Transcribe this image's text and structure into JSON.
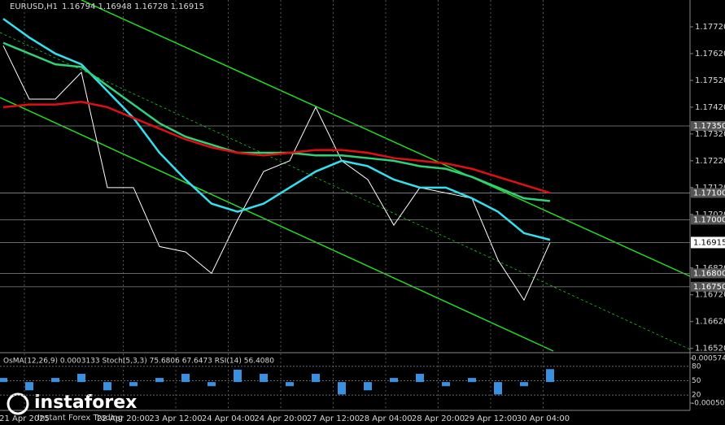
{
  "chart_data": {
    "type": "line",
    "title": "EURUSD,H1",
    "subtitle": "1.16794 1.16948 1.16728 1.16915",
    "ylim": [
      1.1651,
      1.1782
    ],
    "yticks": [
      {
        "value": 1.1772,
        "label": "1.17720"
      },
      {
        "value": 1.1762,
        "label": "1.17620"
      },
      {
        "value": 1.1752,
        "label": "1.17520"
      },
      {
        "value": 1.1742,
        "label": "1.17420"
      },
      {
        "value": 1.1732,
        "label": "1.17320"
      },
      {
        "value": 1.1722,
        "label": "1.17220"
      },
      {
        "value": 1.1712,
        "label": "1.17120"
      },
      {
        "value": 1.1702,
        "label": "1.17020"
      },
      {
        "value": 1.1682,
        "label": "1.16820"
      },
      {
        "value": 1.1672,
        "label": "1.16720"
      },
      {
        "value": 1.1662,
        "label": "1.16620"
      },
      {
        "value": 1.1652,
        "label": "1.16520"
      }
    ],
    "x_labels": [
      "21 Apr 2025",
      "22 Apr 20:00",
      "23 Apr 12:00",
      "24 Apr 04:00",
      "24 Apr 20:00",
      "27 Apr 12:00",
      "28 Apr 04:00",
      "28 Apr 20:00",
      "29 Apr 12:00",
      "30 Apr 04:00"
    ],
    "series": [
      {
        "name": "EURUSD",
        "color": "#ffffff",
        "values": [
          1.1765,
          1.1745,
          1.1745,
          1.1755,
          1.1712,
          1.1712,
          1.169,
          1.1688,
          1.168,
          1.17,
          1.1718,
          1.1722,
          1.1742,
          1.1722,
          1.1715,
          1.1698,
          1.1712,
          1.171,
          1.1708,
          1.1685,
          1.167,
          1.16915
        ]
      },
      {
        "color": "#33e0f0",
        "values": [
          1.1775,
          1.1768,
          1.1762,
          1.1758,
          1.1748,
          1.1738,
          1.1725,
          1.1715,
          1.1706,
          1.1703,
          1.1706,
          1.1712,
          1.1718,
          1.1722,
          1.172,
          1.1715,
          1.1712,
          1.1712,
          1.1708,
          1.1703,
          1.1695,
          1.16925
        ]
      },
      {
        "color": "#2fd27a",
        "values": [
          1.1766,
          1.1762,
          1.1758,
          1.1757,
          1.175,
          1.1743,
          1.1736,
          1.1731,
          1.1728,
          1.1725,
          1.1725,
          1.1725,
          1.1724,
          1.1724,
          1.1723,
          1.1722,
          1.172,
          1.1719,
          1.1716,
          1.1712,
          1.1708,
          1.1707
        ]
      },
      {
        "color": "#e01010",
        "values": [
          1.1742,
          1.1743,
          1.1743,
          1.1744,
          1.1742,
          1.1738,
          1.1734,
          1.173,
          1.1727,
          1.1725,
          1.1724,
          1.1725,
          1.1726,
          1.1726,
          1.1725,
          1.1723,
          1.1722,
          1.1721,
          1.1719,
          1.1716,
          1.1713,
          1.171
        ]
      }
    ],
    "levels": [
      {
        "value": 1.1735,
        "label": "1.17350"
      },
      {
        "value": 1.171,
        "label": "1.17100"
      },
      {
        "value": 1.17,
        "label": "1.17000"
      },
      {
        "value": 1.168,
        "label": "1.16800"
      },
      {
        "value": 1.1675,
        "label": "1.16750"
      }
    ],
    "current": {
      "value": 1.16915,
      "label": "1.16915"
    },
    "indicator": {
      "title": "OsMA(12,26,9) 0.0003133  Stoch(5,3,3) 75.6806 67.6473  RSI(14) 56.4080",
      "y2lim": [
        -0.000509,
        0.000574
      ],
      "y2ticks": [
        0.000574,
        -0.000509
      ],
      "stoch_ylim": [
        0,
        100
      ],
      "stoch_ticks": [
        80,
        50,
        20
      ],
      "color": "#3a8fe0",
      "values": [
        0.0001,
        -0.0002,
        0.0001,
        0.0002,
        -0.0002,
        -0.0001,
        0.0001,
        0.0002,
        -0.0001,
        0.0003,
        0.0002,
        -0.0001,
        0.0002,
        -0.0003,
        -0.0002,
        0.0001,
        0.0002,
        -0.0001,
        0.0001,
        -0.0003,
        -0.0001,
        0.0003133
      ]
    },
    "logo": {
      "brand": "instaforex",
      "tagline": "Instant Forex Trading"
    }
  }
}
